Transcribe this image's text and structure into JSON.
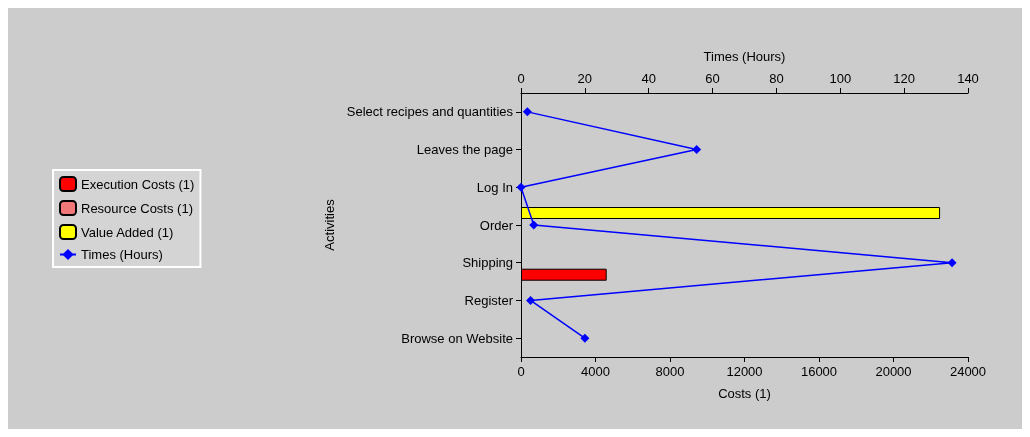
{
  "chart_data": {
    "type": "bar",
    "orientation": "horizontal",
    "ylabel": "Activities",
    "xlabel": "Costs (1)",
    "x2label": "Times (Hours)",
    "categories": [
      "Select recipes and quantities",
      "Leaves the page",
      "Log In",
      "Order",
      "Shipping",
      "Register",
      "Browse on Website"
    ],
    "series": [
      {
        "name": "Execution Costs (1)",
        "color": "#ff0000",
        "values": [
          null,
          null,
          null,
          null,
          4600,
          null,
          null
        ]
      },
      {
        "name": "Resource Costs (1)",
        "color": "#f07878",
        "values": [
          null,
          null,
          null,
          null,
          null,
          null,
          null
        ]
      },
      {
        "name": "Value Added (1)",
        "color": "#ffff00",
        "values": [
          null,
          null,
          null,
          22500,
          null,
          null,
          null
        ]
      },
      {
        "name": "Times (Hours)",
        "type": "line",
        "axis": "x2",
        "color": "#0000ff",
        "marker": "diamond",
        "values": [
          2,
          55,
          0,
          4,
          135,
          3,
          20
        ]
      }
    ],
    "xlim": [
      0,
      24000
    ],
    "xticks": [
      0,
      4000,
      8000,
      12000,
      16000,
      20000,
      24000
    ],
    "x2lim": [
      0,
      140
    ],
    "x2ticks": [
      0,
      20,
      40,
      60,
      80,
      100,
      120,
      140
    ],
    "grid": false,
    "legend": "left"
  }
}
